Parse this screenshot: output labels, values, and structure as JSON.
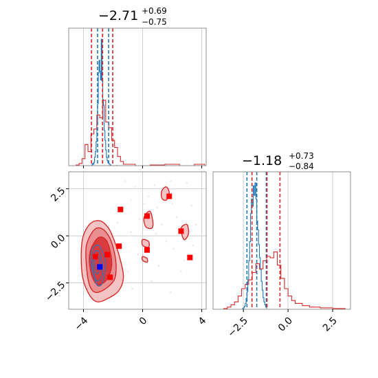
{
  "chart_data": [
    {
      "type": "histogram",
      "panel": "top-left",
      "title": {
        "median": "−2.71",
        "plus": "+0.69",
        "minus": "−0.75"
      },
      "xlim": [
        -5,
        4.3
      ],
      "xticks": [
        -4,
        0,
        4
      ],
      "grid": true,
      "series": [
        {
          "color": "#1f77b4",
          "quantile_lines": [
            -3.05,
            -2.71,
            -2.3
          ],
          "counts": [
            [
              -3.5,
              0
            ],
            [
              -3.45,
              1
            ],
            [
              -3.4,
              3
            ],
            [
              -3.35,
              2
            ],
            [
              -3.3,
              5
            ],
            [
              -3.25,
              12
            ],
            [
              -3.2,
              20
            ],
            [
              -3.15,
              34
            ],
            [
              -3.1,
              58
            ],
            [
              -3.05,
              88
            ],
            [
              -3.0,
              132
            ],
            [
              -2.95,
              150
            ],
            [
              -2.9,
              134
            ],
            [
              -2.85,
              122
            ],
            [
              -2.8,
              180
            ],
            [
              -2.75,
              120
            ],
            [
              -2.7,
              94
            ],
            [
              -2.65,
              86
            ],
            [
              -2.6,
              50
            ],
            [
              -2.55,
              36
            ],
            [
              -2.5,
              22
            ],
            [
              -2.45,
              12
            ],
            [
              -2.4,
              7
            ],
            [
              -2.35,
              4
            ],
            [
              -2.3,
              3
            ],
            [
              -2.25,
              2
            ],
            [
              -2.2,
              1
            ],
            [
              -2.15,
              0
            ],
            [
              -1.8,
              0
            ],
            [
              -1.75,
              1
            ]
          ]
        },
        {
          "color": "#d62728",
          "quantile_lines": [
            -3.46,
            -2.71,
            -2.02
          ],
          "counts": [
            [
              -4.6,
              0
            ],
            [
              -4.5,
              1
            ],
            [
              -4.3,
              3
            ],
            [
              -4.1,
              10
            ],
            [
              -3.9,
              30
            ],
            [
              -3.7,
              20
            ],
            [
              -3.5,
              45
            ],
            [
              -3.3,
              52
            ],
            [
              -3.1,
              72
            ],
            [
              -2.9,
              68
            ],
            [
              -2.7,
              93
            ],
            [
              -2.5,
              62
            ],
            [
              -2.3,
              54
            ],
            [
              -2.1,
              36
            ],
            [
              -1.9,
              26
            ],
            [
              -1.7,
              13
            ],
            [
              -1.5,
              6
            ],
            [
              -1.3,
              2
            ],
            [
              -0.5,
              0
            ],
            [
              0.5,
              1
            ],
            [
              1.5,
              2
            ],
            [
              2.5,
              0
            ],
            [
              3.5,
              2
            ],
            [
              4.2,
              0
            ]
          ]
        }
      ]
    },
    {
      "type": "histogram",
      "panel": "bottom-right",
      "title": {
        "median": "−1.18",
        "plus": "+0.73",
        "minus": "−0.84"
      },
      "xlim": [
        -4.2,
        3.5
      ],
      "xticks": [
        -2.5,
        0.0,
        2.5
      ],
      "xticklabels": [
        "−2.5",
        "0.0",
        "2.5"
      ],
      "grid": true,
      "series": [
        {
          "color": "#1f77b4",
          "quantile_lines": [
            -2.3,
            -1.75,
            -1.22
          ],
          "counts": [
            [
              -2.6,
              0
            ],
            [
              -2.55,
              1
            ],
            [
              -2.5,
              2
            ],
            [
              -2.45,
              4
            ],
            [
              -2.4,
              8
            ],
            [
              -2.35,
              15
            ],
            [
              -2.3,
              24
            ],
            [
              -2.25,
              40
            ],
            [
              -2.2,
              66
            ],
            [
              -2.15,
              92
            ],
            [
              -2.1,
              130
            ],
            [
              -2.05,
              150
            ],
            [
              -2.0,
              140
            ],
            [
              -1.95,
              168
            ],
            [
              -1.9,
              155
            ],
            [
              -1.85,
              172
            ],
            [
              -1.8,
              150
            ],
            [
              -1.75,
              120
            ],
            [
              -1.7,
              108
            ],
            [
              -1.65,
              88
            ],
            [
              -1.6,
              70
            ],
            [
              -1.55,
              54
            ],
            [
              -1.5,
              38
            ],
            [
              -1.45,
              26
            ],
            [
              -1.4,
              16
            ],
            [
              -1.35,
              10
            ],
            [
              -1.3,
              6
            ],
            [
              -1.25,
              3
            ],
            [
              -1.2,
              1
            ]
          ]
        },
        {
          "color": "#d62728",
          "quantile_lines": [
            -2.02,
            -1.18,
            -0.45
          ],
          "counts": [
            [
              -3.7,
              0
            ],
            [
              -3.6,
              1
            ],
            [
              -3.4,
              3
            ],
            [
              -3.2,
              6
            ],
            [
              -3.0,
              10
            ],
            [
              -2.8,
              18
            ],
            [
              -2.6,
              28
            ],
            [
              -2.4,
              34
            ],
            [
              -2.2,
              40
            ],
            [
              -2.0,
              50
            ],
            [
              -1.8,
              62
            ],
            [
              -1.6,
              55
            ],
            [
              -1.4,
              66
            ],
            [
              -1.2,
              72
            ],
            [
              -1.0,
              70
            ],
            [
              -0.8,
              78
            ],
            [
              -0.6,
              60
            ],
            [
              -0.4,
              42
            ],
            [
              -0.2,
              28
            ],
            [
              0.0,
              18
            ],
            [
              0.2,
              12
            ],
            [
              0.4,
              8
            ],
            [
              0.8,
              5
            ],
            [
              1.2,
              3
            ],
            [
              1.8,
              2
            ],
            [
              2.5,
              1
            ],
            [
              3.2,
              0
            ]
          ]
        }
      ]
    },
    {
      "type": "scatter",
      "panel": "bottom-left",
      "xlim": [
        -5,
        4.3
      ],
      "ylim": [
        -3.9,
        3.4
      ],
      "xticks": [
        -4,
        0,
        4
      ],
      "yticks": [
        -2.5,
        0.0,
        2.5
      ],
      "yticklabels": [
        "−2.5",
        "0.0",
        "2.5"
      ],
      "grid": true,
      "red_contours": [
        {
          "level": 1,
          "fill": "#f4c3c4",
          "points": [
            [
              -4.1,
              -0.3
            ],
            [
              -3.6,
              0.6
            ],
            [
              -2.9,
              0.8
            ],
            [
              -2.3,
              0.4
            ],
            [
              -1.9,
              -0.3
            ],
            [
              -1.5,
              -1.3
            ],
            [
              -1.3,
              -2.2
            ],
            [
              -1.6,
              -2.9
            ],
            [
              -2.3,
              -3.3
            ],
            [
              -3.1,
              -3.5
            ],
            [
              -3.7,
              -3.0
            ],
            [
              -4.1,
              -2.0
            ]
          ]
        },
        {
          "level": 2,
          "fill": "#ea8f91",
          "points": [
            [
              -3.8,
              -0.5
            ],
            [
              -3.3,
              0.3
            ],
            [
              -2.8,
              0.4
            ],
            [
              -2.3,
              0.0
            ],
            [
              -2.0,
              -0.6
            ],
            [
              -1.8,
              -1.5
            ],
            [
              -1.9,
              -2.3
            ],
            [
              -2.5,
              -2.8
            ],
            [
              -3.2,
              -3.0
            ],
            [
              -3.6,
              -2.6
            ],
            [
              -3.8,
              -1.6
            ]
          ]
        },
        {
          "level": 3,
          "fill": "#d83c3e",
          "points": [
            [
              -3.5,
              -0.7
            ],
            [
              -3.0,
              -0.1
            ],
            [
              -2.5,
              -0.2
            ],
            [
              -2.2,
              -0.8
            ],
            [
              -2.1,
              -1.6
            ],
            [
              -2.4,
              -2.3
            ],
            [
              -3.0,
              -2.6
            ],
            [
              -3.4,
              -2.2
            ],
            [
              -3.6,
              -1.4
            ]
          ]
        },
        {
          "level": 1,
          "fill": "#f4c3c4",
          "points": [
            [
              1.3,
              2.4
            ],
            [
              1.6,
              2.6
            ],
            [
              1.8,
              2.3
            ],
            [
              1.6,
              1.9
            ],
            [
              1.3,
              2.0
            ]
          ]
        },
        {
          "level": 1,
          "fill": "#f4c3c4",
          "points": [
            [
              0.1,
              1.0
            ],
            [
              0.5,
              1.3
            ],
            [
              0.7,
              0.7
            ],
            [
              0.6,
              0.4
            ],
            [
              0.2,
              0.5
            ]
          ]
        },
        {
          "level": 1,
          "fill": "#f4c3c4",
          "points": [
            [
              2.6,
              0.4
            ],
            [
              3.0,
              0.6
            ],
            [
              3.1,
              0.1
            ],
            [
              2.8,
              -0.2
            ]
          ]
        },
        {
          "level": 1,
          "fill": "#f4c3c4",
          "points": [
            [
              0.0,
              -0.2
            ],
            [
              0.4,
              -0.3
            ],
            [
              0.4,
              -0.6
            ],
            [
              0.0,
              -0.5
            ]
          ]
        },
        {
          "level": 1,
          "fill": "#f4c3c4",
          "points": [
            [
              0.0,
              -1.1
            ],
            [
              0.3,
              -1.2
            ],
            [
              0.3,
              -1.4
            ],
            [
              0.0,
              -1.3
            ]
          ]
        }
      ],
      "blue_contours": [
        {
          "points": [
            [
              -3.4,
              -0.7
            ],
            [
              -3.0,
              -0.5
            ],
            [
              -2.7,
              -0.9
            ],
            [
              -2.5,
              -1.4
            ],
            [
              -2.6,
              -2.1
            ],
            [
              -2.8,
              -2.6
            ],
            [
              -3.1,
              -2.6
            ],
            [
              -3.3,
              -2.1
            ],
            [
              -3.5,
              -1.4
            ]
          ]
        },
        {
          "points": [
            [
              -3.3,
              -0.9
            ],
            [
              -3.0,
              -0.8
            ],
            [
              -2.8,
              -1.2
            ],
            [
              -2.7,
              -1.7
            ],
            [
              -2.8,
              -2.2
            ],
            [
              -3.1,
              -2.4
            ],
            [
              -3.3,
              -2.0
            ],
            [
              -3.4,
              -1.5
            ]
          ]
        },
        {
          "points": [
            [
              -3.2,
              -1.1
            ],
            [
              -3.0,
              -1.1
            ],
            [
              -2.9,
              -1.5
            ],
            [
              -3.0,
              -2.0
            ],
            [
              -3.2,
              -1.9
            ],
            [
              -3.25,
              -1.5
            ]
          ]
        }
      ],
      "markers_red": [
        [
          -1.5,
          1.4
        ],
        [
          1.8,
          2.1
        ],
        [
          0.3,
          1.05
        ],
        [
          2.6,
          0.25
        ],
        [
          -1.6,
          -0.55
        ],
        [
          0.3,
          -0.75
        ],
        [
          -2.4,
          -1.0
        ],
        [
          -3.2,
          -1.1
        ],
        [
          3.2,
          -1.15
        ],
        [
          -2.2,
          -2.2
        ]
      ],
      "marker_blue": [
        -2.9,
        -1.65
      ],
      "faint_points": [
        [
          -1.2,
          2.9
        ],
        [
          -0.5,
          2.6
        ],
        [
          0.8,
          2.7
        ],
        [
          2.2,
          2.5
        ],
        [
          3.0,
          2.8
        ],
        [
          -0.8,
          1.9
        ],
        [
          0.1,
          1.7
        ],
        [
          1.0,
          1.5
        ],
        [
          2.0,
          1.7
        ],
        [
          3.3,
          1.6
        ],
        [
          -0.2,
          0.9
        ],
        [
          1.3,
          0.6
        ],
        [
          2.3,
          1.0
        ],
        [
          3.6,
          0.6
        ],
        [
          -0.8,
          0.2
        ],
        [
          1.6,
          -0.3
        ],
        [
          2.1,
          -0.7
        ],
        [
          3.4,
          -0.5
        ],
        [
          -0.3,
          -1.0
        ],
        [
          1.1,
          -1.6
        ],
        [
          2.6,
          -1.9
        ],
        [
          0.6,
          -2.4
        ],
        [
          -0.7,
          -2.8
        ],
        [
          1.9,
          -3.0
        ],
        [
          -1.0,
          -1.9
        ],
        [
          0.9,
          0.1
        ],
        [
          1.9,
          2.9
        ],
        [
          0.4,
          2.1
        ],
        [
          -1.7,
          0.7
        ],
        [
          2.8,
          -1.3
        ]
      ]
    }
  ]
}
